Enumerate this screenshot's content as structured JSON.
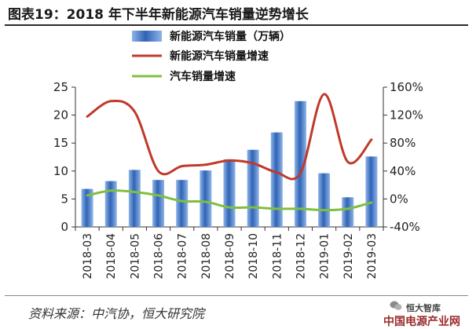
{
  "figure": {
    "title": "图表19：2018 年下半年新能源汽车销量逆势增长",
    "source": "资料来源：中汽协，恒大研究院",
    "watermark_top": "恒大智库",
    "watermark_bottom": "中国电源产业网"
  },
  "chart_data": {
    "type": "bar",
    "categories": [
      "2018-03",
      "2018-04",
      "2018-05",
      "2018-06",
      "2018-07",
      "2018-08",
      "2018-09",
      "2018-10",
      "2018-11",
      "2018-12",
      "2019-01",
      "2019-02",
      "2019-03"
    ],
    "series": [
      {
        "name": "新能源汽车销量（万辆）",
        "kind": "bar",
        "axis": "left",
        "values": [
          6.8,
          8.2,
          10.2,
          8.4,
          8.4,
          10.1,
          12.1,
          13.8,
          16.9,
          22.5,
          9.6,
          5.3,
          12.6
        ],
        "color": "#4a7fc8"
      },
      {
        "name": "新能源汽车销量增速",
        "kind": "line",
        "axis": "right",
        "values": [
          118,
          140,
          125,
          40,
          47,
          49,
          55,
          51,
          38,
          37,
          150,
          53,
          85
        ],
        "color": "#c0392b"
      },
      {
        "name": "汽车销量增速",
        "kind": "line",
        "axis": "right",
        "values": [
          5,
          12,
          10,
          5,
          -3,
          -4,
          -12,
          -12,
          -14,
          -14,
          -16,
          -14,
          -5
        ],
        "color": "#7fbf3f"
      }
    ],
    "y_left": {
      "min": 0,
      "max": 25,
      "ticks": [
        0,
        5,
        10,
        15,
        20,
        25
      ]
    },
    "y_right": {
      "min": -40,
      "max": 160,
      "ticks": [
        -40,
        0,
        40,
        80,
        120,
        160
      ],
      "tick_labels": [
        "-40%",
        "0%",
        "40%",
        "80%",
        "120%",
        "160%"
      ]
    },
    "legend_position": "top-left"
  }
}
